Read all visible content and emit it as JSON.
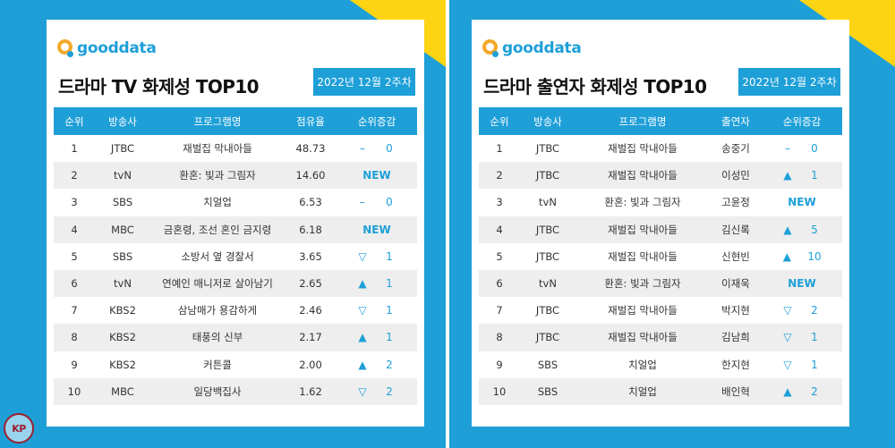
{
  "colors": {
    "brand_blue": "#1e9fd8",
    "accent_yellow": "#fcd414",
    "logo_orange": "#f3a92a"
  },
  "logo": {
    "text": "gooddata",
    "icon": "gooddata-logo-icon"
  },
  "left": {
    "title": "드라마 TV 화제성 TOP10",
    "date": "2022년 12월 2주차",
    "headers": [
      "순위",
      "방송사",
      "프로그램명",
      "점유율",
      "순위증감"
    ],
    "rows": [
      {
        "rank": "1",
        "channel": "JTBC",
        "program": "재벌집 막내아들",
        "value": "48.73",
        "sym": "–",
        "num": "0"
      },
      {
        "rank": "2",
        "channel": "tvN",
        "program": "환혼: 빛과 그림자",
        "value": "14.60",
        "sym": "NEW",
        "num": ""
      },
      {
        "rank": "3",
        "channel": "SBS",
        "program": "치얼업",
        "value": "6.53",
        "sym": "–",
        "num": "0"
      },
      {
        "rank": "4",
        "channel": "MBC",
        "program": "금혼령, 조선 혼인 금지령",
        "value": "6.18",
        "sym": "NEW",
        "num": ""
      },
      {
        "rank": "5",
        "channel": "SBS",
        "program": "소방서 옆 경찰서",
        "value": "3.65",
        "sym": "▽",
        "num": "1"
      },
      {
        "rank": "6",
        "channel": "tvN",
        "program": "연예인 매니저로 살아남기",
        "value": "2.65",
        "sym": "▲",
        "num": "1"
      },
      {
        "rank": "7",
        "channel": "KBS2",
        "program": "삼남매가 용감하게",
        "value": "2.46",
        "sym": "▽",
        "num": "1"
      },
      {
        "rank": "8",
        "channel": "KBS2",
        "program": "태풍의 신부",
        "value": "2.17",
        "sym": "▲",
        "num": "1"
      },
      {
        "rank": "9",
        "channel": "KBS2",
        "program": "커튼콜",
        "value": "2.00",
        "sym": "▲",
        "num": "2"
      },
      {
        "rank": "10",
        "channel": "MBC",
        "program": "일당백집사",
        "value": "1.62",
        "sym": "▽",
        "num": "2"
      }
    ]
  },
  "right": {
    "title": "드라마 출연자 화제성 TOP10",
    "date": "2022년 12월 2주차",
    "headers": [
      "순위",
      "방송사",
      "프로그램명",
      "출연자",
      "순위증감"
    ],
    "rows": [
      {
        "rank": "1",
        "channel": "JTBC",
        "program": "재벌집 막내아들",
        "value": "송중기",
        "sym": "–",
        "num": "0"
      },
      {
        "rank": "2",
        "channel": "JTBC",
        "program": "재벌집 막내아들",
        "value": "이성민",
        "sym": "▲",
        "num": "1"
      },
      {
        "rank": "3",
        "channel": "tvN",
        "program": "환혼: 빛과 그림자",
        "value": "고윤정",
        "sym": "NEW",
        "num": ""
      },
      {
        "rank": "4",
        "channel": "JTBC",
        "program": "재벌집 막내아들",
        "value": "김신록",
        "sym": "▲",
        "num": "5"
      },
      {
        "rank": "5",
        "channel": "JTBC",
        "program": "재벌집 막내아들",
        "value": "신현빈",
        "sym": "▲",
        "num": "10"
      },
      {
        "rank": "6",
        "channel": "tvN",
        "program": "환혼: 빛과 그림자",
        "value": "이재욱",
        "sym": "NEW",
        "num": ""
      },
      {
        "rank": "7",
        "channel": "JTBC",
        "program": "재벌집 막내아들",
        "value": "박지현",
        "sym": "▽",
        "num": "2"
      },
      {
        "rank": "8",
        "channel": "JTBC",
        "program": "재벌집 막내아들",
        "value": "김남희",
        "sym": "▽",
        "num": "1"
      },
      {
        "rank": "9",
        "channel": "SBS",
        "program": "치얼업",
        "value": "한지현",
        "sym": "▽",
        "num": "1"
      },
      {
        "rank": "10",
        "channel": "SBS",
        "program": "치얼업",
        "value": "배인혁",
        "sym": "▲",
        "num": "2"
      }
    ]
  },
  "watermark": {
    "text": "KP"
  }
}
